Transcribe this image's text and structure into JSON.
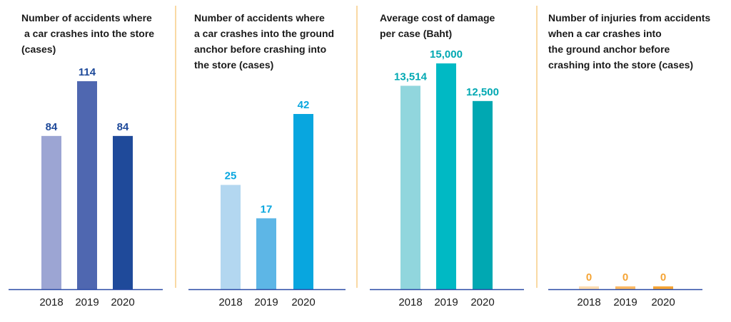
{
  "chart_data": [
    {
      "type": "bar",
      "title_lines": [
        "Number of accidents where",
        "a car crashes into the store",
        "(cases)"
      ],
      "categories": [
        "2018",
        "2019",
        "2020"
      ],
      "values": [
        84,
        114,
        84
      ],
      "value_labels": [
        "84",
        "114",
        "84"
      ],
      "colors": [
        "#9ca5d3",
        "#4f67b0",
        "#1f4a9a"
      ],
      "label_color": "#1f4a9a"
    },
    {
      "type": "bar",
      "title_lines": [
        "Number of accidents where",
        "a car crashes into the ground",
        "anchor before crashing into",
        "the store (cases)"
      ],
      "categories": [
        "2018",
        "2019",
        "2020"
      ],
      "values": [
        25,
        17,
        42
      ],
      "value_labels": [
        "25",
        "17",
        "42"
      ],
      "colors": [
        "#b3d7f0",
        "#5db6e6",
        "#08a6df"
      ],
      "label_color": "#08a6df"
    },
    {
      "type": "bar",
      "title_lines": [
        "Average cost of damage",
        "per case (Baht)"
      ],
      "categories": [
        "2018",
        "2019",
        "2020"
      ],
      "values": [
        13514,
        15000,
        12500
      ],
      "value_labels": [
        "13,514",
        "15,000",
        "12,500"
      ],
      "colors": [
        "#91d6dd",
        "#00b9c4",
        "#00a8b2"
      ],
      "label_color": "#00a8b2"
    },
    {
      "type": "bar",
      "title_lines": [
        "Number of injuries from accidents",
        "when a car crashes into",
        "the ground anchor before",
        "crashing into the store (cases)"
      ],
      "categories": [
        "2018",
        "2019",
        "2020"
      ],
      "values": [
        0,
        0,
        0
      ],
      "value_labels": [
        "0",
        "0",
        "0"
      ],
      "colors": [
        "#fddcb0",
        "#fbb964",
        "#f5a435"
      ],
      "label_color": "#f5a435"
    }
  ],
  "style": {
    "axis_color": "#2a4aa6",
    "divider_color": "#f3b34a",
    "title_color": "#1a1a1a",
    "tick_color": "#1a1a1a"
  }
}
